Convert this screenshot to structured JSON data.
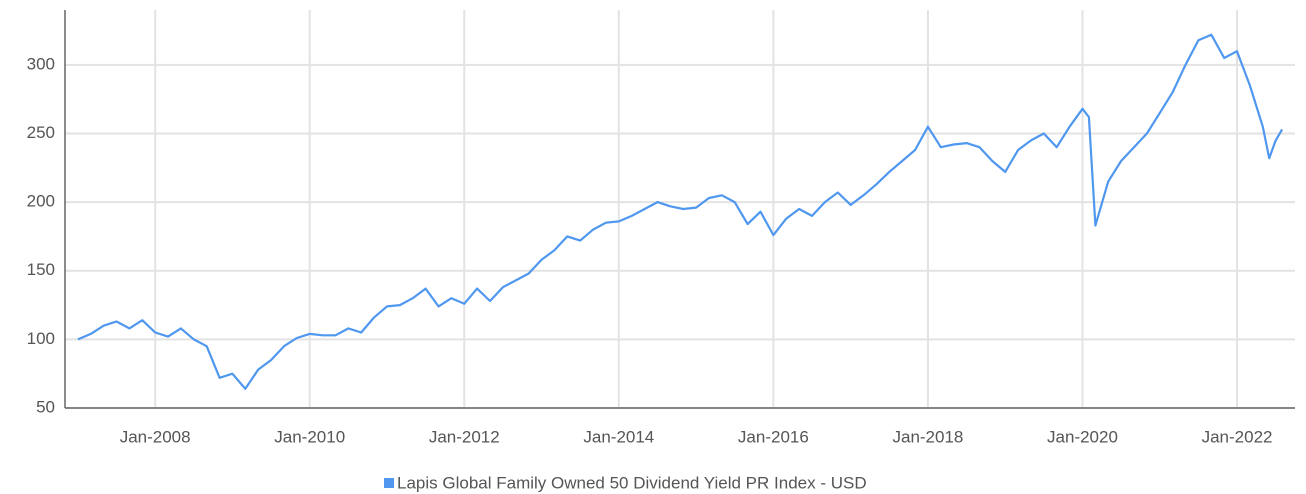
{
  "chart_data": {
    "type": "line",
    "x": [
      "2007-01",
      "2007-03",
      "2007-05",
      "2007-07",
      "2007-09",
      "2007-11",
      "2008-01",
      "2008-03",
      "2008-05",
      "2008-07",
      "2008-09",
      "2008-11",
      "2009-01",
      "2009-03",
      "2009-05",
      "2009-07",
      "2009-09",
      "2009-11",
      "2010-01",
      "2010-03",
      "2010-05",
      "2010-07",
      "2010-09",
      "2010-11",
      "2011-01",
      "2011-03",
      "2011-05",
      "2011-07",
      "2011-09",
      "2011-11",
      "2012-01",
      "2012-03",
      "2012-05",
      "2012-07",
      "2012-09",
      "2012-11",
      "2013-01",
      "2013-03",
      "2013-05",
      "2013-07",
      "2013-09",
      "2013-11",
      "2014-01",
      "2014-03",
      "2014-05",
      "2014-07",
      "2014-09",
      "2014-11",
      "2015-01",
      "2015-03",
      "2015-05",
      "2015-07",
      "2015-09",
      "2015-11",
      "2016-01",
      "2016-03",
      "2016-05",
      "2016-07",
      "2016-09",
      "2016-11",
      "2017-01",
      "2017-03",
      "2017-05",
      "2017-07",
      "2017-09",
      "2017-11",
      "2018-01",
      "2018-03",
      "2018-05",
      "2018-07",
      "2018-09",
      "2018-11",
      "2019-01",
      "2019-03",
      "2019-05",
      "2019-07",
      "2019-09",
      "2019-11",
      "2020-01",
      "2020-02",
      "2020-03",
      "2020-05",
      "2020-07",
      "2020-09",
      "2020-11",
      "2021-01",
      "2021-03",
      "2021-05",
      "2021-07",
      "2021-09",
      "2021-11",
      "2022-01",
      "2022-03",
      "2022-05",
      "2022-06",
      "2022-07",
      "2022-08"
    ],
    "series": [
      {
        "name": "Lapis Global Family Owned 50 Dividend Yield PR Index - USD",
        "color": "#4f97ef",
        "values": [
          100,
          104,
          110,
          113,
          108,
          114,
          105,
          102,
          108,
          100,
          95,
          72,
          75,
          64,
          78,
          85,
          95,
          101,
          104,
          103,
          103,
          108,
          105,
          116,
          124,
          125,
          130,
          137,
          124,
          130,
          126,
          137,
          128,
          138,
          143,
          148,
          158,
          165,
          175,
          172,
          180,
          185,
          186,
          190,
          195,
          200,
          197,
          195,
          196,
          203,
          205,
          200,
          184,
          193,
          176,
          188,
          195,
          190,
          200,
          207,
          198,
          205,
          213,
          222,
          230,
          238,
          255,
          240,
          242,
          243,
          240,
          230,
          222,
          238,
          245,
          250,
          240,
          255,
          268,
          262,
          183,
          215,
          230,
          240,
          250,
          265,
          280,
          300,
          318,
          322,
          305,
          310,
          285,
          255,
          232,
          245,
          253
        ]
      }
    ],
    "xlim": [
      "2006-11",
      "2022-10"
    ],
    "xticks": [
      {
        "value": "2008-01",
        "label": "Jan-2008"
      },
      {
        "value": "2010-01",
        "label": "Jan-2010"
      },
      {
        "value": "2012-01",
        "label": "Jan-2012"
      },
      {
        "value": "2014-01",
        "label": "Jan-2014"
      },
      {
        "value": "2016-01",
        "label": "Jan-2016"
      },
      {
        "value": "2018-01",
        "label": "Jan-2018"
      },
      {
        "value": "2020-01",
        "label": "Jan-2020"
      },
      {
        "value": "2022-01",
        "label": "Jan-2022"
      }
    ],
    "ylim": [
      50,
      340
    ],
    "yticks": [
      50,
      100,
      150,
      200,
      250,
      300
    ],
    "grid": true,
    "legend": "bottom"
  }
}
